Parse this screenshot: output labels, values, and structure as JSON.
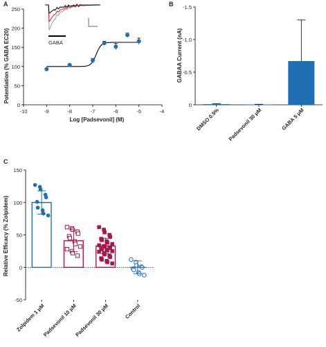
{
  "colors": {
    "blue": "#1f6fb5",
    "crimson": "#a8174a",
    "black": "#000000",
    "red": "#e8262b",
    "gray": "#9a9a9a"
  },
  "chart_data": [
    {
      "panel_label": "A",
      "type": "scatter",
      "xlabel": "Log [Padsevonil] (M)",
      "ylabel": "Potentiation (% GABA EC20)",
      "xlim": [
        -10,
        -4
      ],
      "ylim": [
        0,
        250
      ],
      "x_ticks": [
        "-10",
        "-9",
        "-8",
        "-7",
        "-6",
        "-5",
        "-4"
      ],
      "y_ticks": [
        "0",
        "50",
        "100",
        "150",
        "200",
        "250"
      ],
      "points": [
        {
          "x": -9,
          "y": 93,
          "err": 2
        },
        {
          "x": -8,
          "y": 104,
          "err": 2
        },
        {
          "x": -7,
          "y": 116,
          "err": 5
        },
        {
          "x": -6.5,
          "y": 161,
          "err": 5
        },
        {
          "x": -6,
          "y": 152,
          "err": 8
        },
        {
          "x": -5.5,
          "y": 182,
          "err": 5
        },
        {
          "x": -5,
          "y": 166,
          "err": 8
        }
      ],
      "fit": {
        "bottom": 100,
        "top": 163,
        "logEC50": -6.85,
        "hill": 4
      },
      "inset_label": "GABA"
    },
    {
      "panel_label": "B",
      "type": "bar",
      "ylabel": "GABAA Current (nA)",
      "ylim": [
        0,
        -1.5
      ],
      "y_ticks": [
        "0",
        "-0.5",
        "-1.0",
        "-1.5"
      ],
      "categories": [
        "DMSO 0.5%",
        "Padsevonil 30 μM",
        "GABA 5 μM"
      ],
      "values": [
        -0.01,
        -0.005,
        -0.67
      ],
      "errors": [
        0.005,
        0.003,
        0.63
      ]
    },
    {
      "panel_label": "C",
      "type": "bar",
      "ylabel": "Relative Efficacy (% Zolpidem)",
      "ylim": [
        -50,
        150
      ],
      "y_ticks": [
        "-50",
        "0",
        "50",
        "100",
        "150"
      ],
      "categories": [
        "Zolpidem 1 μM",
        "Padsevonil 10 μM",
        "Padsevonil 30 μM",
        "Control"
      ],
      "values": [
        100,
        41,
        33,
        0
      ],
      "errors": [
        18,
        17,
        12,
        10
      ],
      "points": [
        [
          127,
          124,
          120,
          112,
          108,
          101,
          92,
          88,
          83,
          80
        ],
        [
          62,
          60,
          58,
          55,
          52,
          48,
          45,
          40,
          36,
          32,
          28,
          25,
          22,
          18
        ],
        [
          62,
          58,
          54,
          50,
          47,
          44,
          42,
          40,
          38,
          36,
          34,
          33,
          32,
          31,
          30,
          29,
          28,
          27,
          26,
          25,
          24,
          22,
          20,
          18,
          16,
          14,
          12,
          10,
          8,
          6
        ],
        [
          12,
          8,
          3,
          1,
          0,
          -2,
          -4,
          -8,
          -10,
          -12
        ]
      ]
    }
  ]
}
